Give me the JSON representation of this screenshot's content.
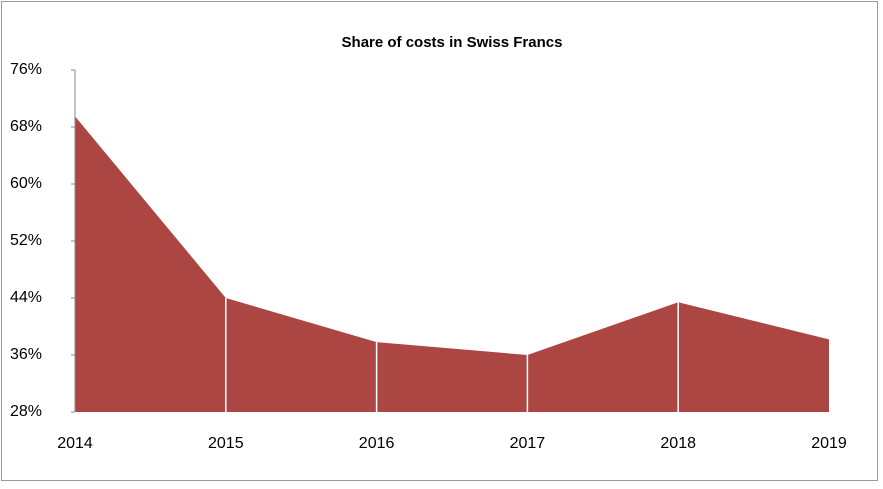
{
  "chart_data": {
    "type": "area",
    "title": "Share of costs in Swiss Francs",
    "categories": [
      "2014",
      "2015",
      "2016",
      "2017",
      "2018",
      "2019"
    ],
    "values": [
      69.5,
      44,
      37.8,
      36,
      43.4,
      38.2
    ],
    "color": "#ab4643",
    "ylim": [
      28,
      76
    ],
    "yticks": [
      {
        "value": 28,
        "label": "28%"
      },
      {
        "value": 36,
        "label": "36%"
      },
      {
        "value": 44,
        "label": "44%"
      },
      {
        "value": 52,
        "label": "52%"
      },
      {
        "value": 60,
        "label": "60%"
      },
      {
        "value": 68,
        "label": "68%"
      },
      {
        "value": 76,
        "label": "76%"
      }
    ],
    "grid": false
  }
}
